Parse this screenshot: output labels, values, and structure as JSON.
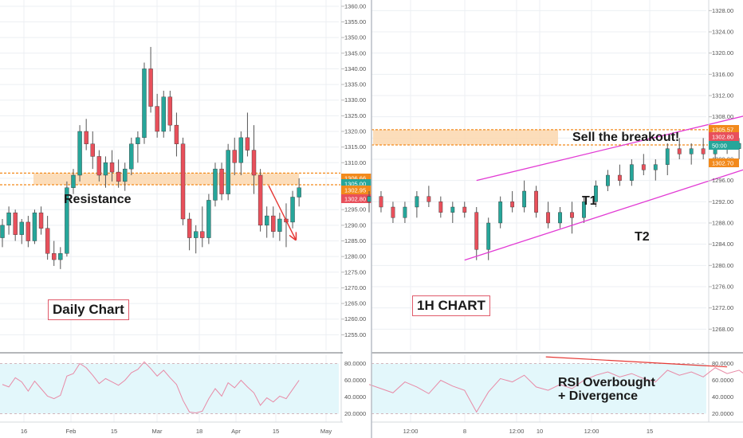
{
  "colors": {
    "up": "#26a69a",
    "down": "#e8505b",
    "wick": "#555555",
    "zone_fill": "#fbd7ae",
    "zone_line": "#f28a1c",
    "arrow": "#e53935",
    "channel": "#e23bd4",
    "rsi_line": "#e88aa6",
    "rsi_band": "#e3f7fb",
    "rsi_div": "#e53935",
    "grid": "#eceff3",
    "axis_text": "#555555"
  },
  "chart_data": [
    {
      "type": "candlestick",
      "panel": "left",
      "ylim": [
        1250,
        1362
      ],
      "y_ticks": [
        "1255.00",
        "1260.00",
        "1265.00",
        "1270.00",
        "1275.00",
        "1280.00",
        "1285.00",
        "1290.00",
        "1295.00",
        "1300.00",
        "1305.00",
        "1310.00",
        "1315.00",
        "1320.00",
        "1325.00",
        "1330.00",
        "1335.00",
        "1340.00",
        "1345.00",
        "1350.00",
        "1355.00",
        "1360.00"
      ],
      "x_ticks": [
        "16",
        "Feb",
        "15",
        "Mar",
        "18",
        "Apr",
        "15",
        "May"
      ],
      "price_badges": [
        {
          "text": "1306.66",
          "color": "#f28a1c"
        },
        {
          "text": "1305.00",
          "color": "#26a69a"
        },
        {
          "text": "1302.95",
          "color": "#f28a1c"
        },
        {
          "text": "1302.80",
          "color": "#e8505b"
        }
      ],
      "zone": [
        1302.95,
        1306.66
      ],
      "candles": [
        [
          1286,
          1292,
          1283,
          1290
        ],
        [
          1290,
          1296,
          1287,
          1294
        ],
        [
          1294,
          1295,
          1285,
          1287
        ],
        [
          1287,
          1292,
          1284,
          1291
        ],
        [
          1291,
          1293,
          1283,
          1285
        ],
        [
          1285,
          1295,
          1284,
          1294
        ],
        [
          1294,
          1296,
          1287,
          1289
        ],
        [
          1289,
          1293,
          1279,
          1281
        ],
        [
          1281,
          1285,
          1277,
          1279
        ],
        [
          1279,
          1283,
          1276,
          1281
        ],
        [
          1281,
          1304,
          1280,
          1302
        ],
        [
          1302,
          1308,
          1300,
          1306
        ],
        [
          1306,
          1322,
          1304,
          1320
        ],
        [
          1320,
          1324,
          1314,
          1316
        ],
        [
          1316,
          1320,
          1308,
          1312
        ],
        [
          1312,
          1314,
          1304,
          1306
        ],
        [
          1306,
          1312,
          1302,
          1310
        ],
        [
          1310,
          1314,
          1304,
          1307
        ],
        [
          1307,
          1311,
          1302,
          1304
        ],
        [
          1304,
          1310,
          1301,
          1308
        ],
        [
          1308,
          1318,
          1306,
          1316
        ],
        [
          1316,
          1320,
          1310,
          1318
        ],
        [
          1318,
          1342,
          1316,
          1340
        ],
        [
          1340,
          1347,
          1326,
          1328
        ],
        [
          1328,
          1332,
          1318,
          1320
        ],
        [
          1320,
          1333,
          1318,
          1331
        ],
        [
          1331,
          1333,
          1320,
          1322
        ],
        [
          1322,
          1326,
          1312,
          1316
        ],
        [
          1316,
          1318,
          1290,
          1292
        ],
        [
          1292,
          1294,
          1282,
          1286
        ],
        [
          1286,
          1290,
          1281,
          1288
        ],
        [
          1288,
          1296,
          1283,
          1286
        ],
        [
          1286,
          1300,
          1284,
          1298
        ],
        [
          1298,
          1310,
          1296,
          1308
        ],
        [
          1308,
          1310,
          1298,
          1300
        ],
        [
          1300,
          1316,
          1298,
          1314
        ],
        [
          1314,
          1318,
          1306,
          1310
        ],
        [
          1310,
          1320,
          1306,
          1318
        ],
        [
          1318,
          1326,
          1312,
          1314
        ],
        [
          1314,
          1322,
          1300,
          1306
        ],
        [
          1306,
          1308,
          1288,
          1290
        ],
        [
          1290,
          1296,
          1286,
          1293
        ],
        [
          1293,
          1296,
          1286,
          1288
        ],
        [
          1288,
          1294,
          1285,
          1292
        ],
        [
          1292,
          1297,
          1283,
          1291
        ],
        [
          1291,
          1301,
          1289,
          1299
        ],
        [
          1299,
          1305,
          1296,
          1302
        ]
      ]
    },
    {
      "type": "candlestick",
      "panel": "right",
      "ylim": [
        1264,
        1330
      ],
      "y_ticks": [
        "1268.00",
        "1272.00",
        "1276.00",
        "1280.00",
        "1284.00",
        "1288.00",
        "1292.00",
        "1296.00",
        "1300.00",
        "1304.00",
        "1308.00",
        "1312.00",
        "1316.00",
        "1320.00",
        "1324.00",
        "1328.00"
      ],
      "x_ticks": [
        "12:00",
        "8",
        "12:00",
        "10",
        "12:00",
        "15"
      ],
      "price_badges": [
        {
          "text": "1305.57",
          "color": "#f28a1c"
        },
        {
          "text": "1302.80",
          "color": "#e8505b"
        },
        {
          "text": "50:00",
          "color": "#26a69a"
        },
        {
          "text": "1302.70",
          "color": "#f28a1c"
        }
      ],
      "zone": [
        1302.7,
        1305.57
      ],
      "candles": [
        [
          1292,
          1294,
          1290,
          1293
        ],
        [
          1293,
          1294,
          1290,
          1291
        ],
        [
          1291,
          1292,
          1288,
          1289
        ],
        [
          1289,
          1292,
          1288,
          1291
        ],
        [
          1291,
          1294,
          1289,
          1293
        ],
        [
          1293,
          1295,
          1291,
          1292
        ],
        [
          1292,
          1293,
          1289,
          1290
        ],
        [
          1290,
          1292,
          1288,
          1291
        ],
        [
          1291,
          1292,
          1289,
          1290
        ],
        [
          1290,
          1291,
          1281,
          1283
        ],
        [
          1283,
          1289,
          1281,
          1288
        ],
        [
          1288,
          1293,
          1287,
          1292
        ],
        [
          1292,
          1294,
          1290,
          1291
        ],
        [
          1291,
          1296,
          1290,
          1294
        ],
        [
          1294,
          1295,
          1289,
          1290
        ],
        [
          1290,
          1292,
          1287,
          1288
        ],
        [
          1288,
          1291,
          1287,
          1290
        ],
        [
          1290,
          1292,
          1286,
          1289
        ],
        [
          1289,
          1293,
          1288,
          1292
        ],
        [
          1292,
          1296,
          1291,
          1295
        ],
        [
          1295,
          1298,
          1294,
          1297
        ],
        [
          1297,
          1299,
          1295,
          1296
        ],
        [
          1296,
          1300,
          1295,
          1299
        ],
        [
          1299,
          1301,
          1297,
          1298
        ],
        [
          1298,
          1300,
          1296,
          1299
        ],
        [
          1299,
          1303,
          1297,
          1302
        ],
        [
          1302,
          1304,
          1300,
          1301
        ],
        [
          1301,
          1303,
          1299,
          1302
        ],
        [
          1302,
          1304,
          1300,
          1301
        ],
        [
          1301,
          1304,
          1300,
          1303
        ],
        [
          1303,
          1305,
          1301,
          1302
        ],
        [
          1302,
          1304,
          1300,
          1303
        ],
        [
          1303,
          1306,
          1302,
          1305
        ],
        [
          1305,
          1307,
          1303,
          1304
        ],
        [
          1304,
          1306,
          1302,
          1305
        ],
        [
          1305,
          1307,
          1303,
          1304
        ],
        [
          1304,
          1306,
          1302,
          1303
        ],
        [
          1303,
          1305,
          1301,
          1302
        ]
      ],
      "channel": {
        "lower": [
          [
            8,
            1281
          ],
          [
            37.5,
            1302.5
          ]
        ],
        "upper": [
          [
            9,
            1296
          ],
          [
            38.5,
            1312
          ]
        ]
      },
      "breakout": {
        "ask": [
          [
            35.3,
            1303.5
          ],
          [
            37.6,
            1305.5
          ]
        ],
        "target": [
          [
            37.6,
            1305.5
          ],
          [
            41.5,
            1294.5
          ],
          [
            44.3,
            1299
          ],
          [
            46.6,
            1287
          ]
        ]
      }
    }
  ],
  "left_panel": {
    "label_resistance": "Resistance",
    "label_chart": "Daily Chart",
    "rsi_ticks": [
      "20.0000",
      "40.0000",
      "60.0000",
      "80.0000"
    ],
    "rsi_values": [
      55,
      52,
      63,
      58,
      47,
      59,
      50,
      41,
      38,
      42,
      65,
      68,
      80,
      75,
      66,
      56,
      62,
      58,
      54,
      60,
      69,
      73,
      82,
      74,
      65,
      72,
      63,
      55,
      36,
      22,
      21,
      23,
      38,
      50,
      41,
      57,
      51,
      60,
      52,
      45,
      30,
      39,
      34,
      41,
      38,
      49,
      60
    ]
  },
  "right_panel": {
    "label_sell": "Sell the breakout!",
    "label_t1": "T1",
    "label_t2": "T2",
    "label_chart": "1H CHART",
    "label_rsi_1": "RSI Overbought",
    "label_rsi_2": "+ Divergence",
    "rsi_ticks": [
      "20.0000",
      "40.0000",
      "60.0000",
      "80.0000"
    ],
    "rsi_values": [
      55,
      50,
      45,
      58,
      52,
      44,
      60,
      53,
      48,
      22,
      46,
      62,
      58,
      66,
      52,
      48,
      55,
      50,
      60,
      66,
      70,
      64,
      68,
      62,
      58,
      72,
      66,
      70,
      64,
      75,
      68,
      72,
      62,
      66,
      58,
      72,
      62,
      54
    ]
  }
}
